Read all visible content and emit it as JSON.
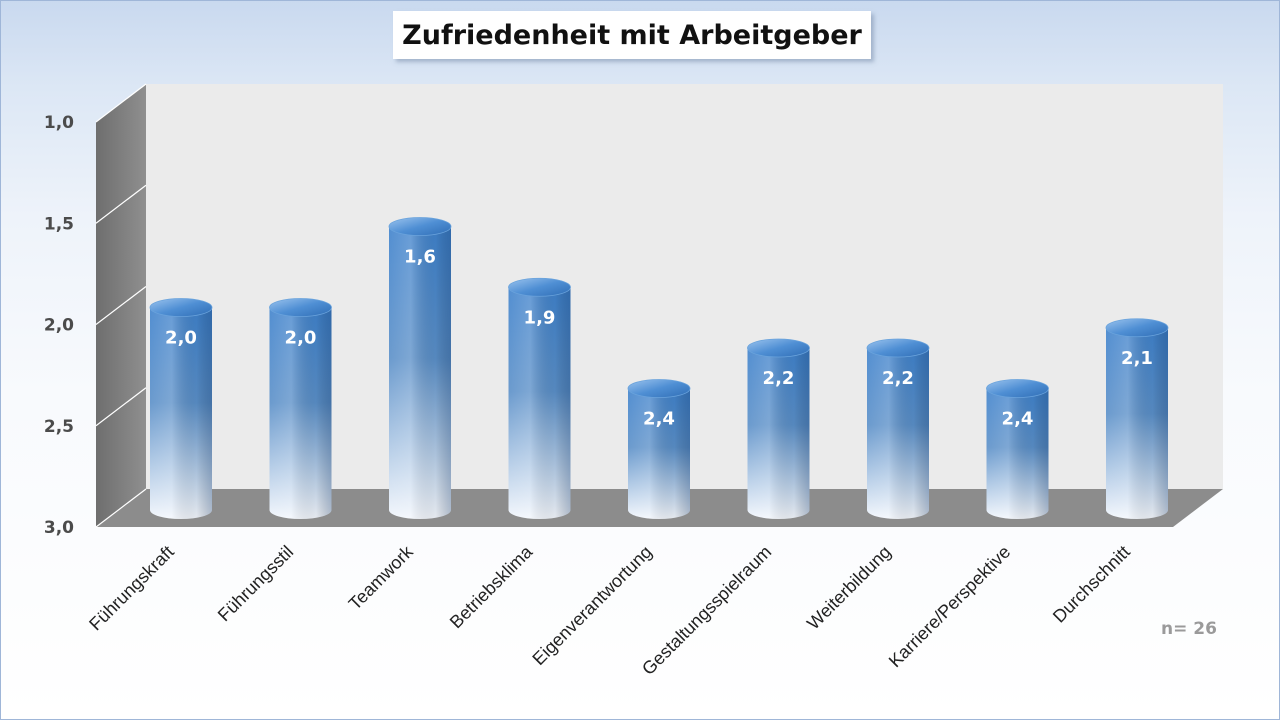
{
  "chart_data": {
    "type": "bar",
    "title": "Zufriedenheit mit Arbeitgeber",
    "note": "n= 26",
    "categories": [
      "Führungskraft",
      "Führungsstil",
      "Teamwork",
      "Betriebsklima",
      "Eigenverantwortung",
      "Gestaltungsspielraum",
      "Weiterbildung",
      "Karriere/Perspektive",
      "Durchschnitt"
    ],
    "values": [
      2.0,
      2.0,
      1.6,
      1.9,
      2.4,
      2.2,
      2.2,
      2.4,
      2.1
    ],
    "data_labels": [
      "2,0",
      "2,0",
      "1,6",
      "1,9",
      "2,4",
      "2,2",
      "2,2",
      "2,4",
      "2,1"
    ],
    "y_ticks": [
      "1,0",
      "1,5",
      "2,0",
      "2,5",
      "3,0"
    ],
    "ylim": [
      1.0,
      3.0
    ],
    "y_axis_reversed": true,
    "bar_shape": "3d-cylinder",
    "grid": true,
    "legend": "none",
    "colors": {
      "bar_top": "#3f82cc",
      "bar_mid": "#5a8fc8",
      "bar_bottom": "#f2f6fc",
      "wall": "#ebebeb",
      "side_wall": "#8f8f8f",
      "floor": "#8c8c8c",
      "label": "#ffffff",
      "note": "#9a9a9a"
    }
  }
}
